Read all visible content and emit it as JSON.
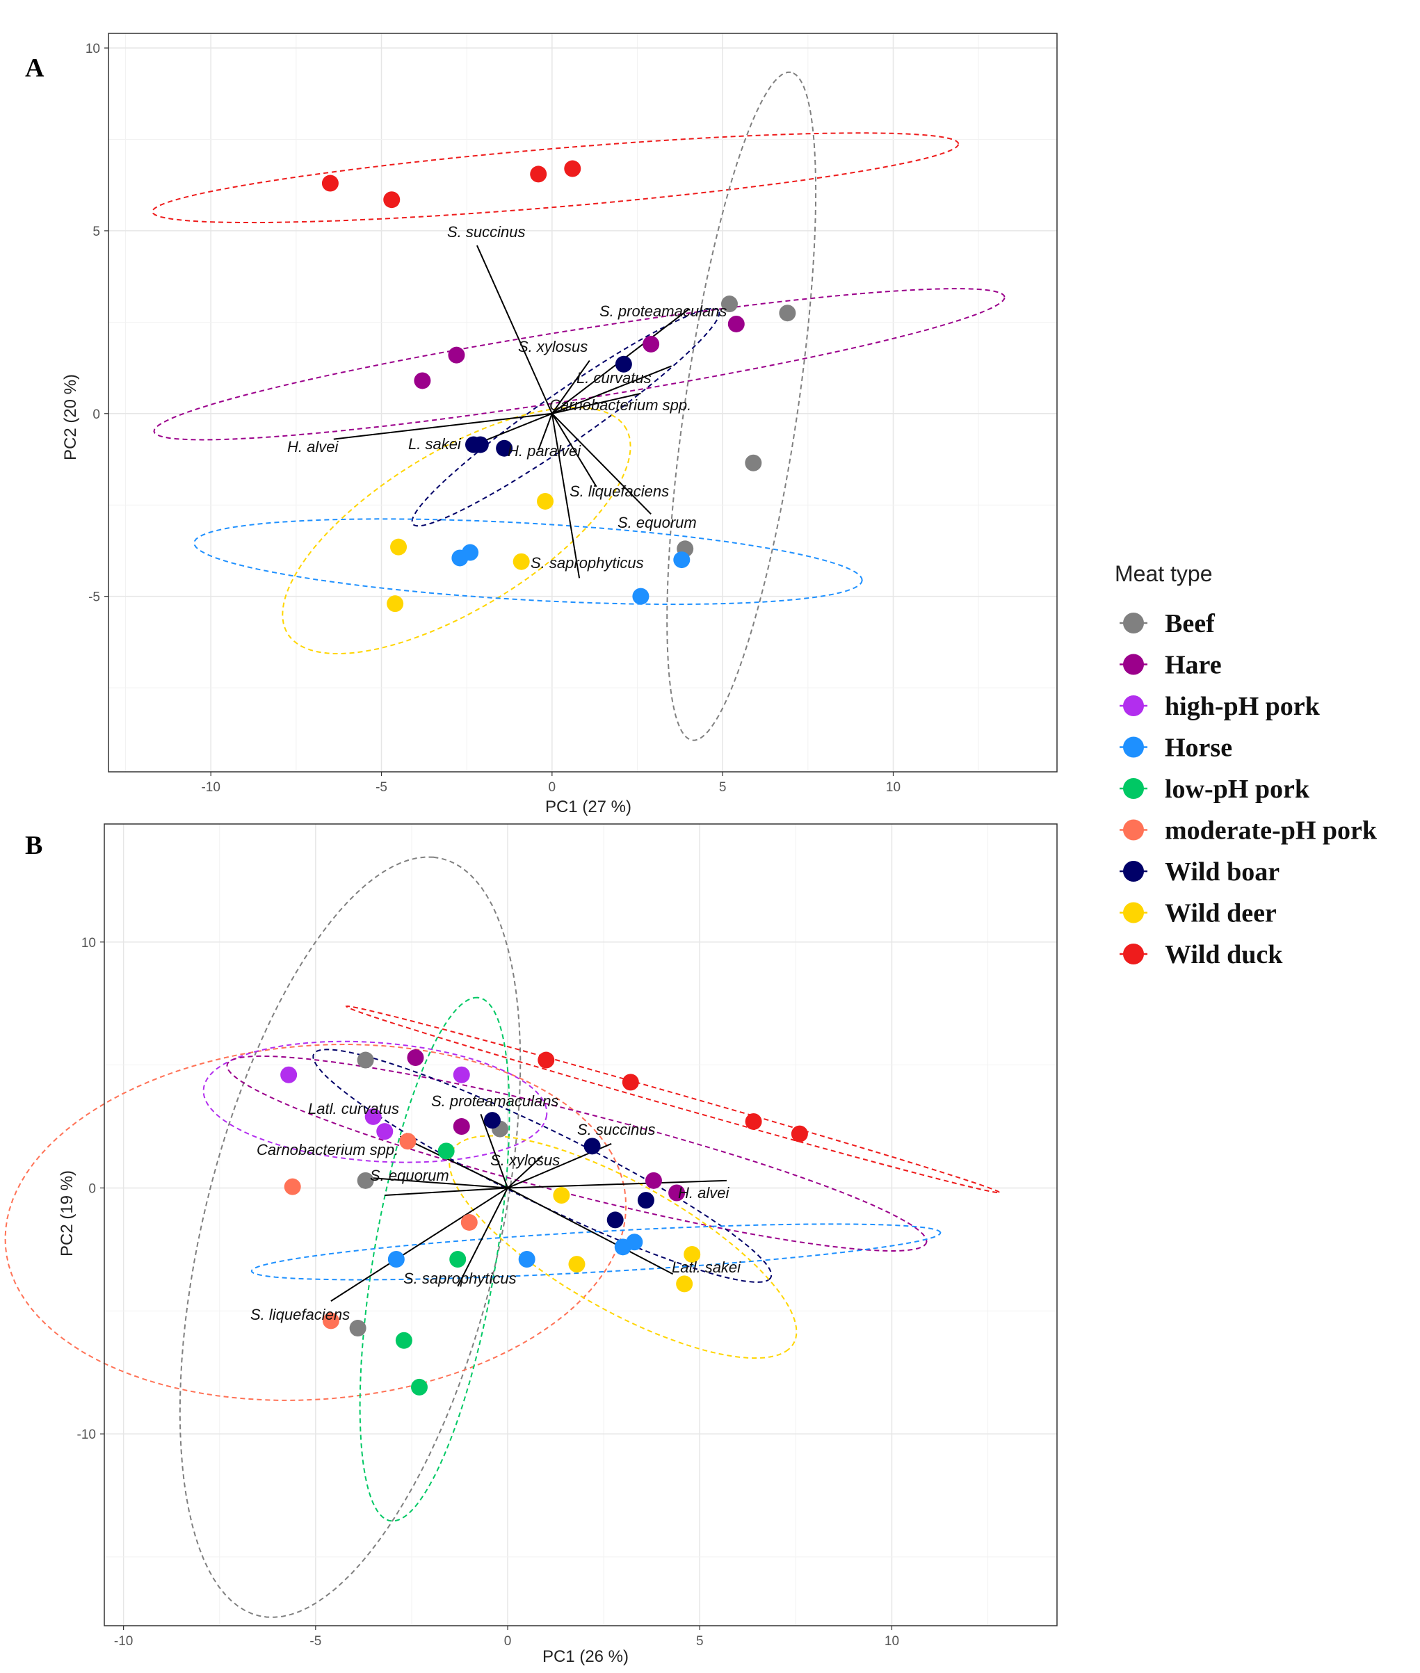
{
  "legend": {
    "title": "Meat type",
    "items": [
      {
        "name": "Beef",
        "color": "#808080"
      },
      {
        "name": "Hare",
        "color": "#9B008B"
      },
      {
        "name": "high-pH pork",
        "color": "#B22EEE"
      },
      {
        "name": "Horse",
        "color": "#1E90FF"
      },
      {
        "name": "low-pH pork",
        "color": "#00C864"
      },
      {
        "name": "moderate-pH pork",
        "color": "#FF7256"
      },
      {
        "name": "Wild boar",
        "color": "#000068"
      },
      {
        "name": "Wild deer",
        "color": "#FFD500"
      },
      {
        "name": "Wild duck",
        "color": "#EE1C1C"
      }
    ]
  },
  "chart_data": [
    {
      "type": "scatter",
      "panel_label": "A",
      "xlabel": "PC1 (27 %)",
      "ylabel": "PC2 (20 %)",
      "xlim": [
        -13.0,
        14.8
      ],
      "ylim": [
        -9.8,
        10.4
      ],
      "xticks": [
        -10,
        -5,
        0,
        5,
        10
      ],
      "yticks": [
        -5,
        0,
        5,
        10
      ],
      "grid": true,
      "points": [
        {
          "group": "Wild duck",
          "x": -6.5,
          "y": 6.3
        },
        {
          "group": "Wild duck",
          "x": -4.7,
          "y": 5.85
        },
        {
          "group": "Wild duck",
          "x": -0.4,
          "y": 6.55
        },
        {
          "group": "Wild duck",
          "x": 0.6,
          "y": 6.7
        },
        {
          "group": "Beef",
          "x": 5.2,
          "y": 3.0
        },
        {
          "group": "Beef",
          "x": 6.9,
          "y": 2.75
        },
        {
          "group": "Beef",
          "x": 5.9,
          "y": -1.35
        },
        {
          "group": "Beef",
          "x": 3.9,
          "y": -3.7
        },
        {
          "group": "Hare",
          "x": -3.8,
          "y": 0.9
        },
        {
          "group": "Hare",
          "x": -2.8,
          "y": 1.6
        },
        {
          "group": "Hare",
          "x": 2.9,
          "y": 1.9
        },
        {
          "group": "Hare",
          "x": 5.4,
          "y": 2.45
        },
        {
          "group": "Wild boar",
          "x": 2.1,
          "y": 1.35
        },
        {
          "group": "Wild boar",
          "x": -2.3,
          "y": -0.85
        },
        {
          "group": "Wild boar",
          "x": -2.1,
          "y": -0.85
        },
        {
          "group": "Wild boar",
          "x": -1.4,
          "y": -0.95
        },
        {
          "group": "Wild deer",
          "x": -0.2,
          "y": -2.4
        },
        {
          "group": "Wild deer",
          "x": -4.5,
          "y": -3.65
        },
        {
          "group": "Wild deer",
          "x": -0.9,
          "y": -4.05
        },
        {
          "group": "Wild deer",
          "x": -4.6,
          "y": -5.2
        },
        {
          "group": "Horse",
          "x": -2.7,
          "y": -3.95
        },
        {
          "group": "Horse",
          "x": -2.4,
          "y": -3.8
        },
        {
          "group": "Horse",
          "x": 3.8,
          "y": -4.0
        },
        {
          "group": "Horse",
          "x": 2.6,
          "y": -5.0
        }
      ],
      "ellipses": [
        {
          "group": "Wild duck",
          "cx": 0.1,
          "cy": 6.45,
          "rx": 11.85,
          "ry": 0.8,
          "angle": 4.5
        },
        {
          "group": "Hare",
          "cx": 0.8,
          "cy": 1.35,
          "rx": 12.6,
          "ry": 0.95,
          "angle": 8.4
        },
        {
          "group": "Beef",
          "cx": 5.55,
          "cy": 0.2,
          "rx": 9.25,
          "ry": 1.65,
          "angle": 81.0
        },
        {
          "group": "Wild boar",
          "cx": 0.4,
          "cy": -0.1,
          "rx": 5.35,
          "ry": 0.7,
          "angle": 33.0
        },
        {
          "group": "Wild deer",
          "cx": -2.8,
          "cy": -3.2,
          "rx": 5.7,
          "ry": 2.2,
          "angle": 29.0
        },
        {
          "group": "Horse",
          "cx": -0.7,
          "cy": -4.05,
          "rx": 9.8,
          "ry": 1.05,
          "angle": -3.0
        }
      ],
      "vectors": [
        {
          "label": "S. succinus",
          "x": -2.2,
          "y": 4.6
        },
        {
          "label": "S. proteamaculans",
          "x": 4.0,
          "y": 2.85
        },
        {
          "label": "S. xylosus",
          "x": 1.1,
          "y": 1.45
        },
        {
          "label": "L. curvatus",
          "x": 3.5,
          "y": 1.3
        },
        {
          "label": "Carnobacterium spp.",
          "x": 2.6,
          "y": 0.55
        },
        {
          "label": "H. alvei",
          "x": -6.4,
          "y": -0.7
        },
        {
          "label": "L. sakei",
          "x": -2.4,
          "y": -0.9
        },
        {
          "label": "H. paralvei",
          "x": -0.4,
          "y": -1.0
        },
        {
          "label": "S. liquefaciens",
          "x": 1.3,
          "y": -2.0
        },
        {
          "label": "S. equorum",
          "x": 2.9,
          "y": -2.75
        },
        {
          "label": "S. saprophyticus",
          "x": 0.8,
          "y": -4.5
        }
      ]
    },
    {
      "type": "scatter",
      "panel_label": "B",
      "xlabel": "PC1 (26 %)",
      "ylabel": "PC2 (19 %)",
      "xlim": [
        -10.5,
        14.3
      ],
      "ylim": [
        -17.8,
        14.8
      ],
      "xticks": [
        -10,
        -5,
        0,
        5,
        10
      ],
      "yticks": [
        -10,
        0,
        10
      ],
      "grid": true,
      "points": [
        {
          "group": "Beef",
          "x": -3.7,
          "y": 5.2
        },
        {
          "group": "Beef",
          "x": -0.2,
          "y": 2.4
        },
        {
          "group": "Beef",
          "x": -3.7,
          "y": 0.3
        },
        {
          "group": "Beef",
          "x": -3.9,
          "y": -5.7
        },
        {
          "group": "Hare",
          "x": -2.4,
          "y": 5.3
        },
        {
          "group": "Hare",
          "x": -1.2,
          "y": 2.5
        },
        {
          "group": "Hare",
          "x": 3.8,
          "y": 0.3
        },
        {
          "group": "Hare",
          "x": 4.4,
          "y": -0.2
        },
        {
          "group": "high-pH pork",
          "x": -5.7,
          "y": 4.6
        },
        {
          "group": "high-pH pork",
          "x": -1.2,
          "y": 4.6
        },
        {
          "group": "high-pH pork",
          "x": -3.5,
          "y": 2.9
        },
        {
          "group": "high-pH pork",
          "x": -3.2,
          "y": 2.3
        },
        {
          "group": "Horse",
          "x": -2.9,
          "y": -2.9
        },
        {
          "group": "Horse",
          "x": 0.5,
          "y": -2.9
        },
        {
          "group": "Horse",
          "x": 3.0,
          "y": -2.4
        },
        {
          "group": "Horse",
          "x": 3.3,
          "y": -2.2
        },
        {
          "group": "low-pH pork",
          "x": -1.6,
          "y": 1.5
        },
        {
          "group": "low-pH pork",
          "x": -1.3,
          "y": -2.9
        },
        {
          "group": "low-pH pork",
          "x": -2.7,
          "y": -6.2
        },
        {
          "group": "low-pH pork",
          "x": -2.3,
          "y": -8.1
        },
        {
          "group": "moderate-pH pork",
          "x": -2.6,
          "y": 1.9
        },
        {
          "group": "moderate-pH pork",
          "x": -5.6,
          "y": 0.05
        },
        {
          "group": "moderate-pH pork",
          "x": -1.0,
          "y": -1.4
        },
        {
          "group": "moderate-pH pork",
          "x": -4.6,
          "y": -5.4
        },
        {
          "group": "Wild boar",
          "x": -0.4,
          "y": 2.75
        },
        {
          "group": "Wild boar",
          "x": 2.2,
          "y": 1.7
        },
        {
          "group": "Wild boar",
          "x": 3.6,
          "y": -0.5
        },
        {
          "group": "Wild boar",
          "x": 2.8,
          "y": -1.3
        },
        {
          "group": "Wild deer",
          "x": 1.4,
          "y": -0.3
        },
        {
          "group": "Wild deer",
          "x": 1.8,
          "y": -3.1
        },
        {
          "group": "Wild deer",
          "x": 4.8,
          "y": -2.7
        },
        {
          "group": "Wild deer",
          "x": 4.6,
          "y": -3.9
        },
        {
          "group": "Wild duck",
          "x": 1.0,
          "y": 5.2
        },
        {
          "group": "Wild duck",
          "x": 3.2,
          "y": 4.3
        },
        {
          "group": "Wild duck",
          "x": 6.4,
          "y": 2.7
        },
        {
          "group": "Wild duck",
          "x": 7.6,
          "y": 2.2
        }
      ],
      "ellipses": [
        {
          "group": "Beef",
          "cx": -4.1,
          "cy": -2.0,
          "rx": 15.6,
          "ry": 3.9,
          "angle": 82.0
        },
        {
          "group": "moderate-pH pork",
          "cx": -5.0,
          "cy": -1.4,
          "rx": 8.2,
          "ry": 7.1,
          "angle": 20.0
        },
        {
          "group": "high-pH pork",
          "cx": -3.45,
          "cy": 3.5,
          "rx": 4.5,
          "ry": 2.4,
          "angle": -8.0
        },
        {
          "group": "low-pH pork",
          "cx": -1.9,
          "cy": -2.9,
          "rx": 10.7,
          "ry": 1.6,
          "angle": 84.0
        },
        {
          "group": "Hare",
          "cx": 1.8,
          "cy": 1.4,
          "rx": 9.8,
          "ry": 1.6,
          "angle": -22.0
        },
        {
          "group": "Wild duck",
          "cx": 4.3,
          "cy": 3.6,
          "rx": 9.3,
          "ry": 0.25,
          "angle": -24.0
        },
        {
          "group": "Wild boar",
          "cx": 0.9,
          "cy": 0.9,
          "rx": 7.5,
          "ry": 1.3,
          "angle": -38.0
        },
        {
          "group": "Wild deer",
          "cx": 3.0,
          "cy": -2.4,
          "rx": 6.0,
          "ry": 2.2,
          "angle": -45.0
        },
        {
          "group": "Horse",
          "cx": 2.3,
          "cy": -2.6,
          "rx": 9.0,
          "ry": 0.82,
          "angle": 5.0
        }
      ],
      "vectors": [
        {
          "label": "S. proteamaculans",
          "x": -0.7,
          "y": 3.0
        },
        {
          "label": "Latl. curvatus",
          "x": -2.8,
          "y": 2.1
        },
        {
          "label": "S. succinus",
          "x": 2.7,
          "y": 1.8
        },
        {
          "label": "Carnobacterium spp.",
          "x": -3.5,
          "y": 0.4
        },
        {
          "label": "S. xylosus",
          "x": 0.9,
          "y": 1.3
        },
        {
          "label": "S. equorum",
          "x": -3.2,
          "y": -0.3
        },
        {
          "label": "H. alvei",
          "x": 5.7,
          "y": 0.3
        },
        {
          "label": "Latl. sakei",
          "x": 4.3,
          "y": -3.5
        },
        {
          "label": "S. saprophyticus",
          "x": -1.3,
          "y": -4.0
        },
        {
          "label": "S. liquefaciens",
          "x": -4.6,
          "y": -4.6
        }
      ]
    }
  ]
}
